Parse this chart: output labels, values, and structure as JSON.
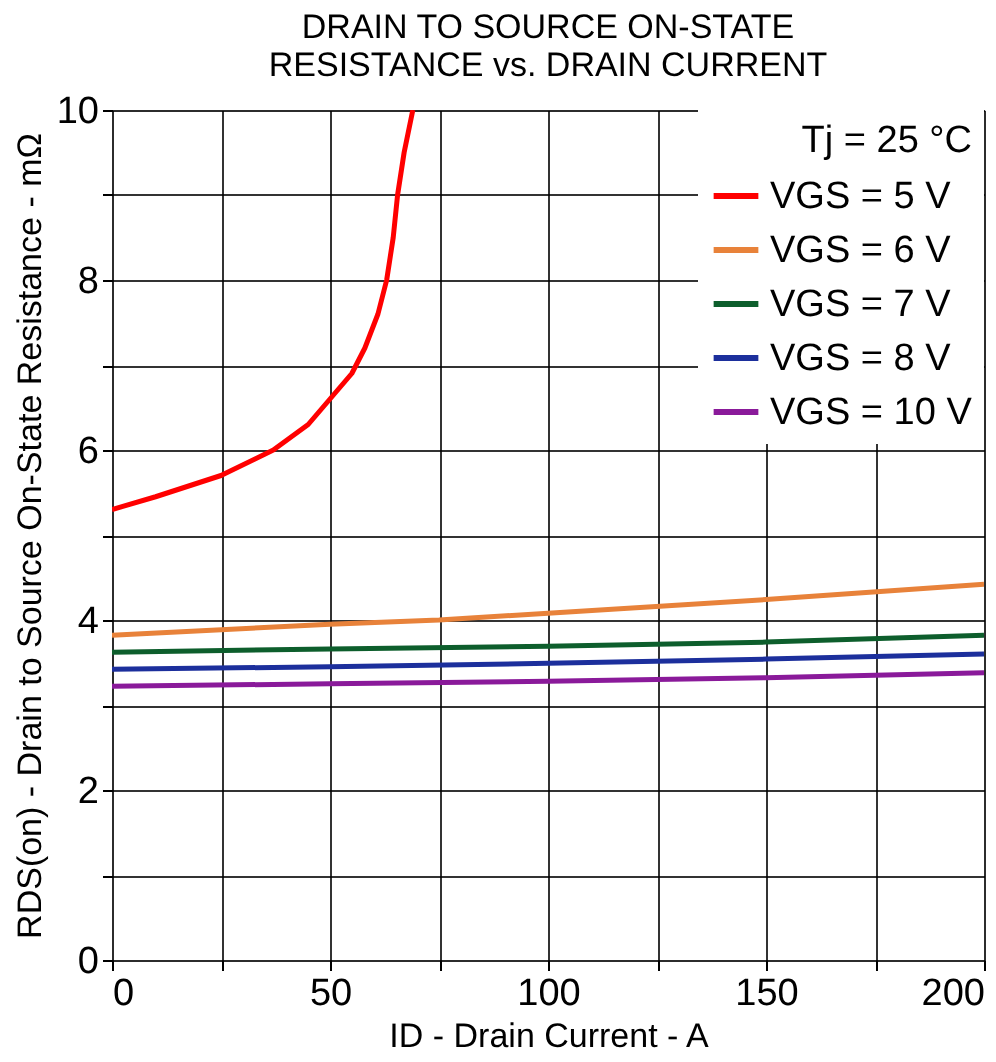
{
  "chart_data": {
    "type": "line",
    "title": [
      "DRAIN TO SOURCE ON-STATE",
      "RESISTANCE vs. DRAIN CURRENT"
    ],
    "xlabel": "ID - Drain Current - A",
    "ylabel": "RDS(on) - Drain to Source On-State Resistance - mΩ",
    "legend_title": "Tj = 25 °C",
    "xlim": [
      0,
      200
    ],
    "ylim": [
      0,
      10
    ],
    "xticks": [
      0,
      {
        "value": 25,
        "label": null
      },
      50,
      {
        "value": 75,
        "label": null
      },
      100,
      {
        "value": 125,
        "label": null
      },
      150,
      {
        "value": 175,
        "label": null
      },
      200
    ],
    "yticks": [
      0,
      {
        "value": 1,
        "label": null
      },
      2,
      {
        "value": 3,
        "label": null
      },
      4,
      {
        "value": 5,
        "label": null
      },
      6,
      {
        "value": 7,
        "label": null
      },
      8,
      {
        "value": 9,
        "label": null
      },
      10
    ],
    "grid": true,
    "legend": "top right",
    "marker": "none",
    "line_style": "solid",
    "series": [
      {
        "name": "VGS = 5 V",
        "color": "#ff0000",
        "x": [
          0,
          10,
          25,
          37,
          45,
          50,
          55,
          58,
          61,
          63,
          64.5,
          65.5,
          67,
          69
        ],
        "values": [
          5.3,
          5.45,
          5.7,
          6.0,
          6.3,
          6.6,
          6.9,
          7.2,
          7.6,
          8.0,
          8.5,
          9.0,
          9.5,
          10
        ]
      },
      {
        "name": "VGS = 6 V",
        "color": "#e8823a",
        "x": [
          0,
          50,
          75,
          100,
          150,
          200
        ],
        "values": [
          3.82,
          3.95,
          4.0,
          4.08,
          4.24,
          4.42
        ]
      },
      {
        "name": "VGS = 7 V",
        "color": "#0d5e2c",
        "x": [
          0,
          50,
          100,
          150,
          200
        ],
        "values": [
          3.62,
          3.66,
          3.69,
          3.74,
          3.82
        ]
      },
      {
        "name": "VGS = 8 V",
        "color": "#1c2f9c",
        "x": [
          0,
          50,
          100,
          150,
          200
        ],
        "values": [
          3.42,
          3.45,
          3.49,
          3.54,
          3.6
        ]
      },
      {
        "name": "VGS = 10 V",
        "color": "#8a1a9a",
        "x": [
          0,
          50,
          100,
          150,
          200
        ],
        "values": [
          3.22,
          3.25,
          3.28,
          3.32,
          3.38
        ]
      }
    ]
  }
}
